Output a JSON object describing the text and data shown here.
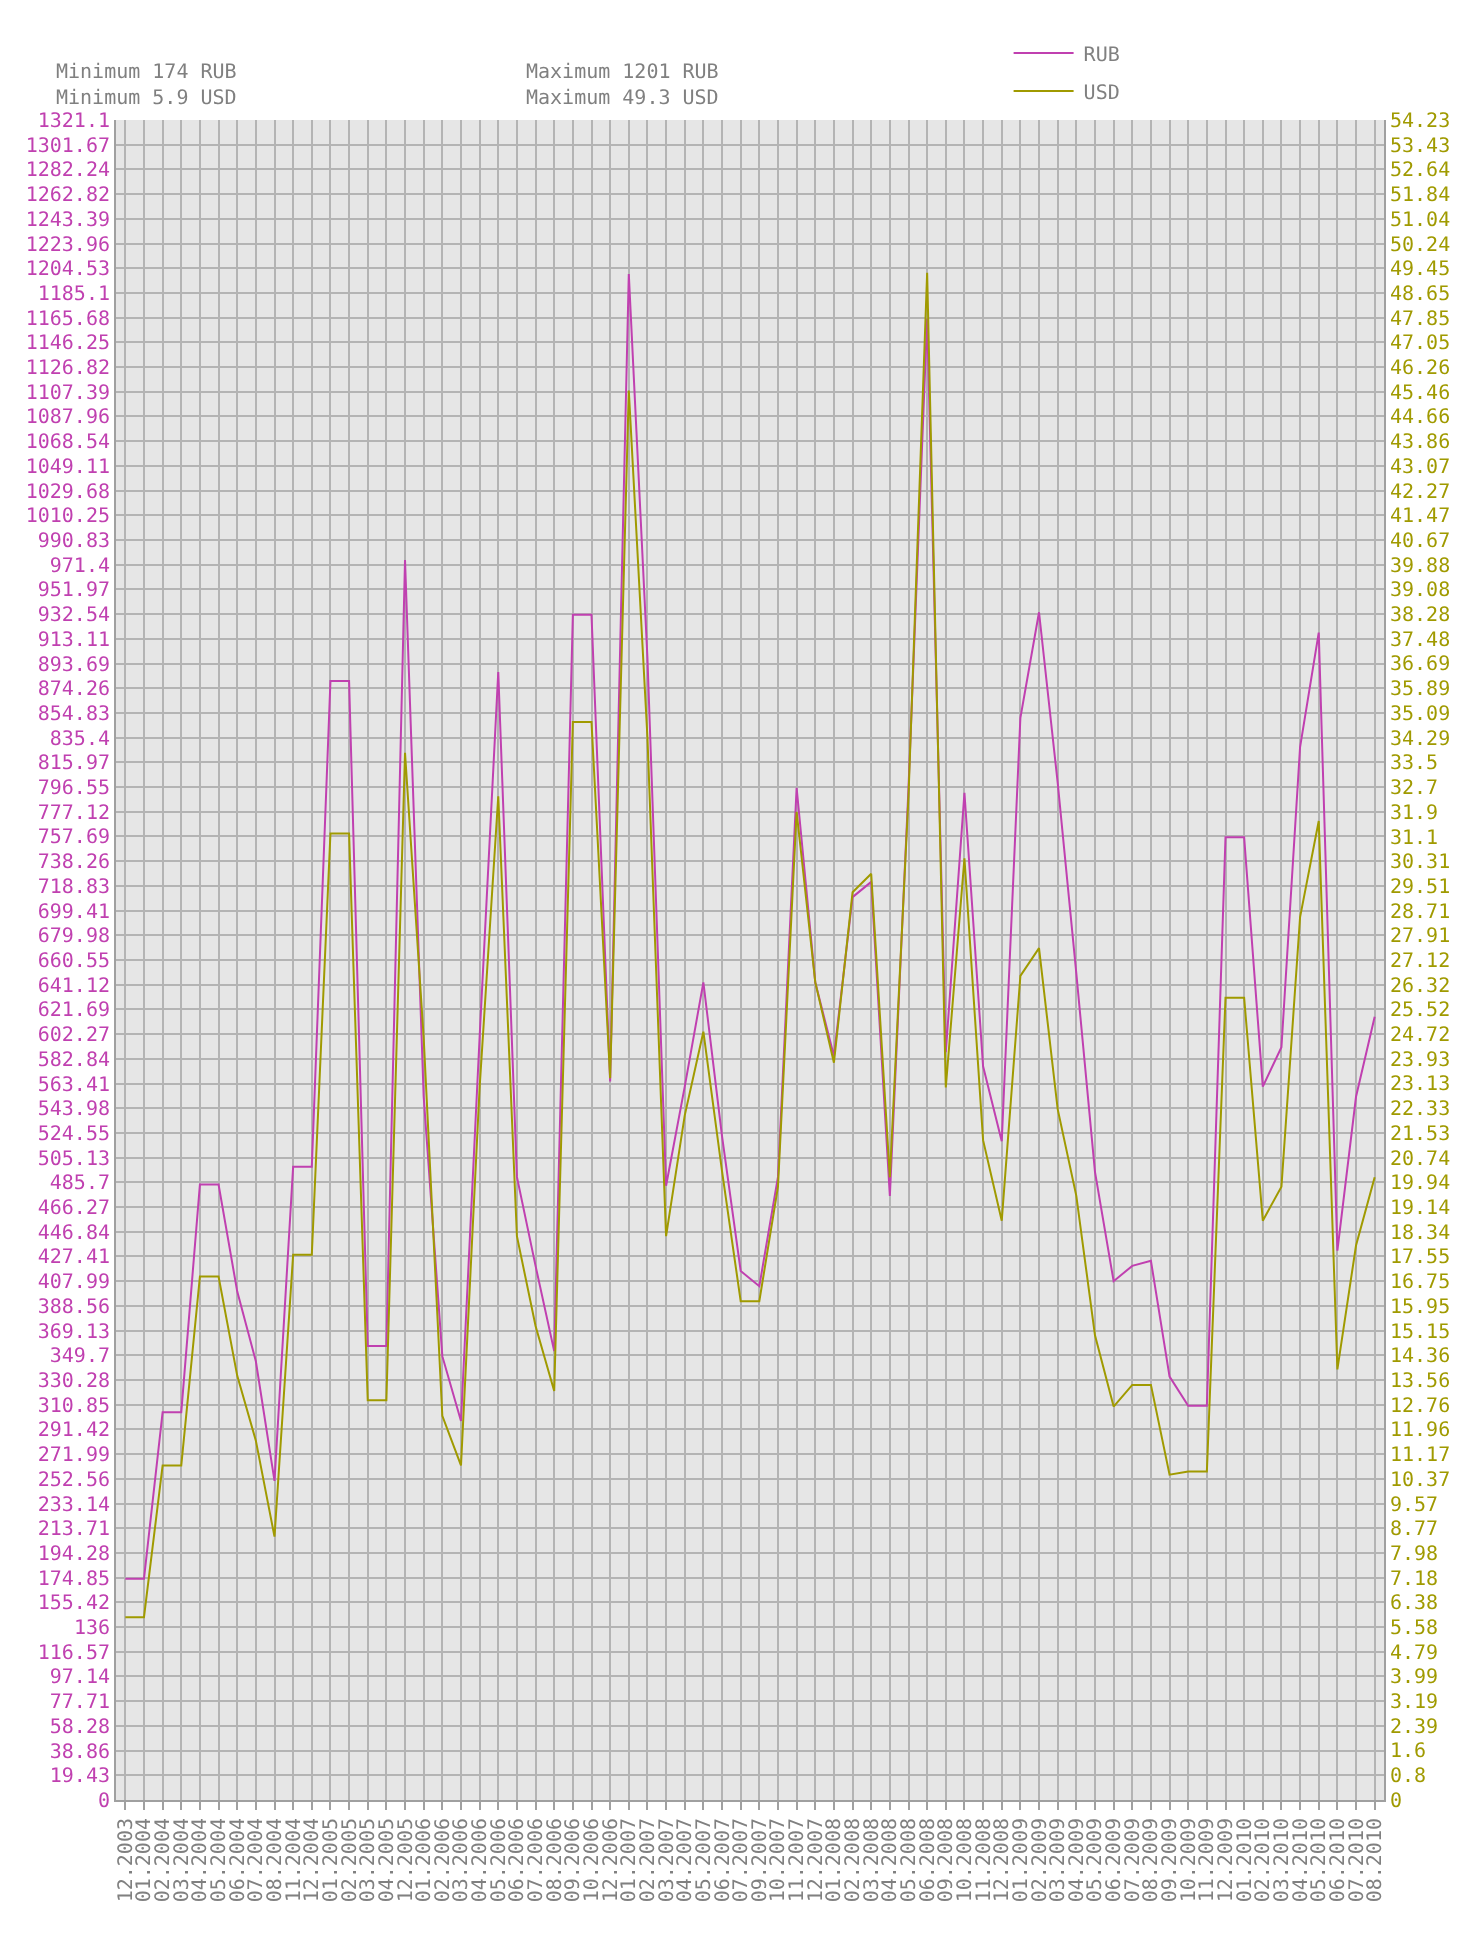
{
  "chart_data": {
    "type": "line",
    "categories": [
      "12.2003",
      "01.2004",
      "02.2004",
      "03.2004",
      "04.2004",
      "05.2004",
      "06.2004",
      "07.2004",
      "08.2004",
      "11.2004",
      "12.2004",
      "01.2005",
      "02.2005",
      "03.2005",
      "04.2005",
      "12.2005",
      "01.2006",
      "02.2006",
      "03.2006",
      "04.2006",
      "05.2006",
      "06.2006",
      "07.2006",
      "08.2006",
      "09.2006",
      "10.2006",
      "12.2006",
      "01.2007",
      "02.2007",
      "03.2007",
      "04.2007",
      "05.2007",
      "06.2007",
      "07.2007",
      "09.2007",
      "10.2007",
      "11.2007",
      "12.2007",
      "01.2008",
      "02.2008",
      "03.2008",
      "04.2008",
      "05.2008",
      "06.2008",
      "09.2008",
      "10.2008",
      "11.2008",
      "12.2008",
      "01.2009",
      "02.2009",
      "03.2009",
      "04.2009",
      "05.2009",
      "06.2009",
      "07.2009",
      "08.2009",
      "09.2009",
      "10.2009",
      "11.2009",
      "12.2009",
      "01.2010",
      "02.2010",
      "03.2010",
      "04.2010",
      "05.2010",
      "06.2010",
      "07.2010",
      "08.2010"
    ],
    "series": [
      {
        "name": "RUB",
        "color": "#c040b0",
        "values": [
          174,
          174,
          305,
          305,
          484,
          484,
          400,
          345,
          251,
          498,
          498,
          880,
          880,
          357,
          357,
          975,
          553,
          349,
          298,
          600,
          887,
          490,
          420,
          353,
          932,
          932,
          565,
          1200,
          898,
          483,
          561,
          643,
          522,
          416,
          404,
          490,
          796,
          643,
          585,
          710,
          722,
          475,
          796,
          1165,
          588,
          792,
          577,
          518,
          851,
          934,
          800,
          650,
          494,
          408,
          420,
          424,
          333,
          310,
          310,
          757,
          757,
          561,
          592,
          828,
          918,
          432,
          553,
          616
        ]
      },
      {
        "name": "USD",
        "color": "#a09a00",
        "axis": "y2",
        "values": [
          5.9,
          5.9,
          10.8,
          10.8,
          16.9,
          16.9,
          13.7,
          11.6,
          8.5,
          17.6,
          17.6,
          31.2,
          31.2,
          12.9,
          12.9,
          33.8,
          24.6,
          12.4,
          10.8,
          23,
          32.4,
          18.2,
          15.3,
          13.2,
          34.8,
          34.8,
          23.3,
          45.5,
          34.3,
          18.2,
          22.1,
          24.8,
          20.3,
          16.1,
          16.1,
          19.8,
          31.9,
          26.4,
          23.8,
          29.3,
          29.9,
          20.1,
          32.4,
          49.3,
          23,
          30.4,
          21.3,
          18.7,
          26.6,
          27.5,
          22.3,
          19.5,
          15,
          12.7,
          13.4,
          13.4,
          10.5,
          10.6,
          10.6,
          25.9,
          25.9,
          18.7,
          19.8,
          28.5,
          31.6,
          13.9,
          17.9,
          20.1
        ]
      }
    ],
    "ylim": [
      0,
      1321.1
    ],
    "yticks": [
      0,
      19.43,
      38.86,
      58.28,
      77.71,
      97.14,
      116.57,
      136,
      155.42,
      174.85,
      194.28,
      213.71,
      233.14,
      252.56,
      271.99,
      291.42,
      310.85,
      330.28,
      349.7,
      369.13,
      388.56,
      407.99,
      427.41,
      446.84,
      466.27,
      485.7,
      505.13,
      524.55,
      543.98,
      563.41,
      582.84,
      602.27,
      621.69,
      641.12,
      660.55,
      679.98,
      699.41,
      718.83,
      738.26,
      757.69,
      777.12,
      796.55,
      815.97,
      835.4,
      854.83,
      874.26,
      893.69,
      913.11,
      932.54,
      951.97,
      971.4,
      990.83,
      1010.25,
      1029.68,
      1049.11,
      1068.54,
      1087.96,
      1107.39,
      1126.82,
      1146.25,
      1165.68,
      1185.1,
      1204.53,
      1223.96,
      1243.39,
      1262.82,
      1282.24,
      1301.67,
      1321.1
    ],
    "y2lim": [
      0,
      54.23
    ],
    "y2ticks": [
      0,
      0.8,
      1.6,
      2.39,
      3.19,
      3.99,
      4.79,
      5.58,
      6.38,
      7.18,
      7.98,
      8.77,
      9.57,
      10.37,
      11.17,
      11.96,
      12.76,
      13.56,
      14.36,
      15.15,
      15.95,
      16.75,
      17.55,
      18.34,
      19.14,
      19.94,
      20.74,
      21.53,
      22.33,
      23.13,
      23.93,
      24.72,
      25.52,
      26.32,
      27.12,
      27.91,
      28.71,
      29.51,
      30.31,
      31.1,
      31.9,
      32.7,
      33.5,
      34.29,
      35.09,
      35.89,
      36.69,
      37.48,
      38.28,
      39.08,
      39.88,
      40.67,
      41.47,
      42.27,
      43.07,
      43.86,
      44.66,
      45.46,
      46.26,
      47.05,
      47.85,
      48.65,
      49.45,
      50.24,
      51.04,
      51.84,
      52.64,
      53.43,
      54.23
    ],
    "annotations": [
      "Minimum 174 RUB",
      "Minimum 5.9 USD",
      "Maximum 1201 RUB",
      "Maximum 49.3 USD"
    ],
    "grid": true,
    "legend": "top",
    "marker": "none",
    "line_style": "solid"
  }
}
